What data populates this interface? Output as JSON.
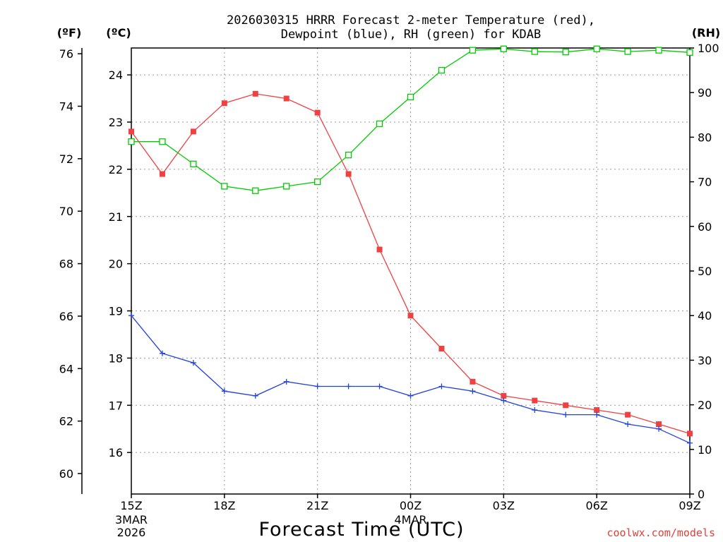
{
  "chart_data": {
    "type": "line",
    "title_lines": [
      "2026030315 HRRR Forecast 2-meter Temperature (red),",
      "Dewpoint (blue), RH (green) for KDAB"
    ],
    "unit_labels": {
      "fahrenheit": "(ºF)",
      "celsius": "(ºC)",
      "rh": "(RH)"
    },
    "xlabel": "Forecast Time (UTC)",
    "credit": "coolwx.com/models",
    "x_hours": [
      0,
      1,
      2,
      3,
      4,
      5,
      6,
      7,
      8,
      9,
      10,
      11,
      12,
      13,
      14,
      15,
      16,
      17,
      18
    ],
    "x_ticks": [
      {
        "hour": 0,
        "label": "15Z",
        "sub": [
          "3MAR",
          "2026"
        ]
      },
      {
        "hour": 3,
        "label": "18Z",
        "sub": []
      },
      {
        "hour": 6,
        "label": "21Z",
        "sub": []
      },
      {
        "hour": 9,
        "label": "00Z",
        "sub": [
          "4MAR"
        ]
      },
      {
        "hour": 12,
        "label": "03Z",
        "sub": []
      },
      {
        "hour": 15,
        "label": "06Z",
        "sub": []
      },
      {
        "hour": 18,
        "label": "09Z",
        "sub": []
      }
    ],
    "axes": {
      "fahrenheit": {
        "range": [
          59.22,
          76.22
        ],
        "ticks": [
          60,
          62,
          64,
          66,
          68,
          70,
          72,
          74,
          76
        ]
      },
      "celsius": {
        "range": [
          15.12,
          24.57
        ],
        "ticks": [
          16,
          17,
          18,
          19,
          20,
          21,
          22,
          23,
          24
        ]
      },
      "rh": {
        "range": [
          0,
          100
        ],
        "ticks": [
          0,
          10,
          20,
          30,
          40,
          50,
          60,
          70,
          80,
          90,
          100
        ]
      }
    },
    "series": [
      {
        "name": "Temperature",
        "color": "#f04040",
        "axis": "celsius",
        "marker": "filled-square",
        "values": [
          22.8,
          21.9,
          22.8,
          23.4,
          23.6,
          23.5,
          23.2,
          21.9,
          20.3,
          18.9,
          18.2,
          17.5,
          17.2,
          17.1,
          17.0,
          16.9,
          16.8,
          16.6,
          16.4
        ]
      },
      {
        "name": "Dewpoint",
        "color": "#2040e0",
        "axis": "celsius",
        "marker": "plus",
        "values": [
          18.9,
          18.1,
          17.9,
          17.3,
          17.2,
          17.5,
          17.4,
          17.4,
          17.4,
          17.2,
          17.4,
          17.3,
          17.1,
          16.9,
          16.8,
          16.8,
          16.6,
          16.5,
          16.2
        ]
      },
      {
        "name": "RH",
        "color": "#00cc00",
        "axis": "rh",
        "marker": "open-square",
        "values": [
          79,
          79,
          74,
          69,
          68,
          69,
          70,
          76,
          83,
          89,
          95,
          99.5,
          99.8,
          99.2,
          99.1,
          99.8,
          99.2,
          99.5,
          99.0
        ]
      }
    ]
  }
}
